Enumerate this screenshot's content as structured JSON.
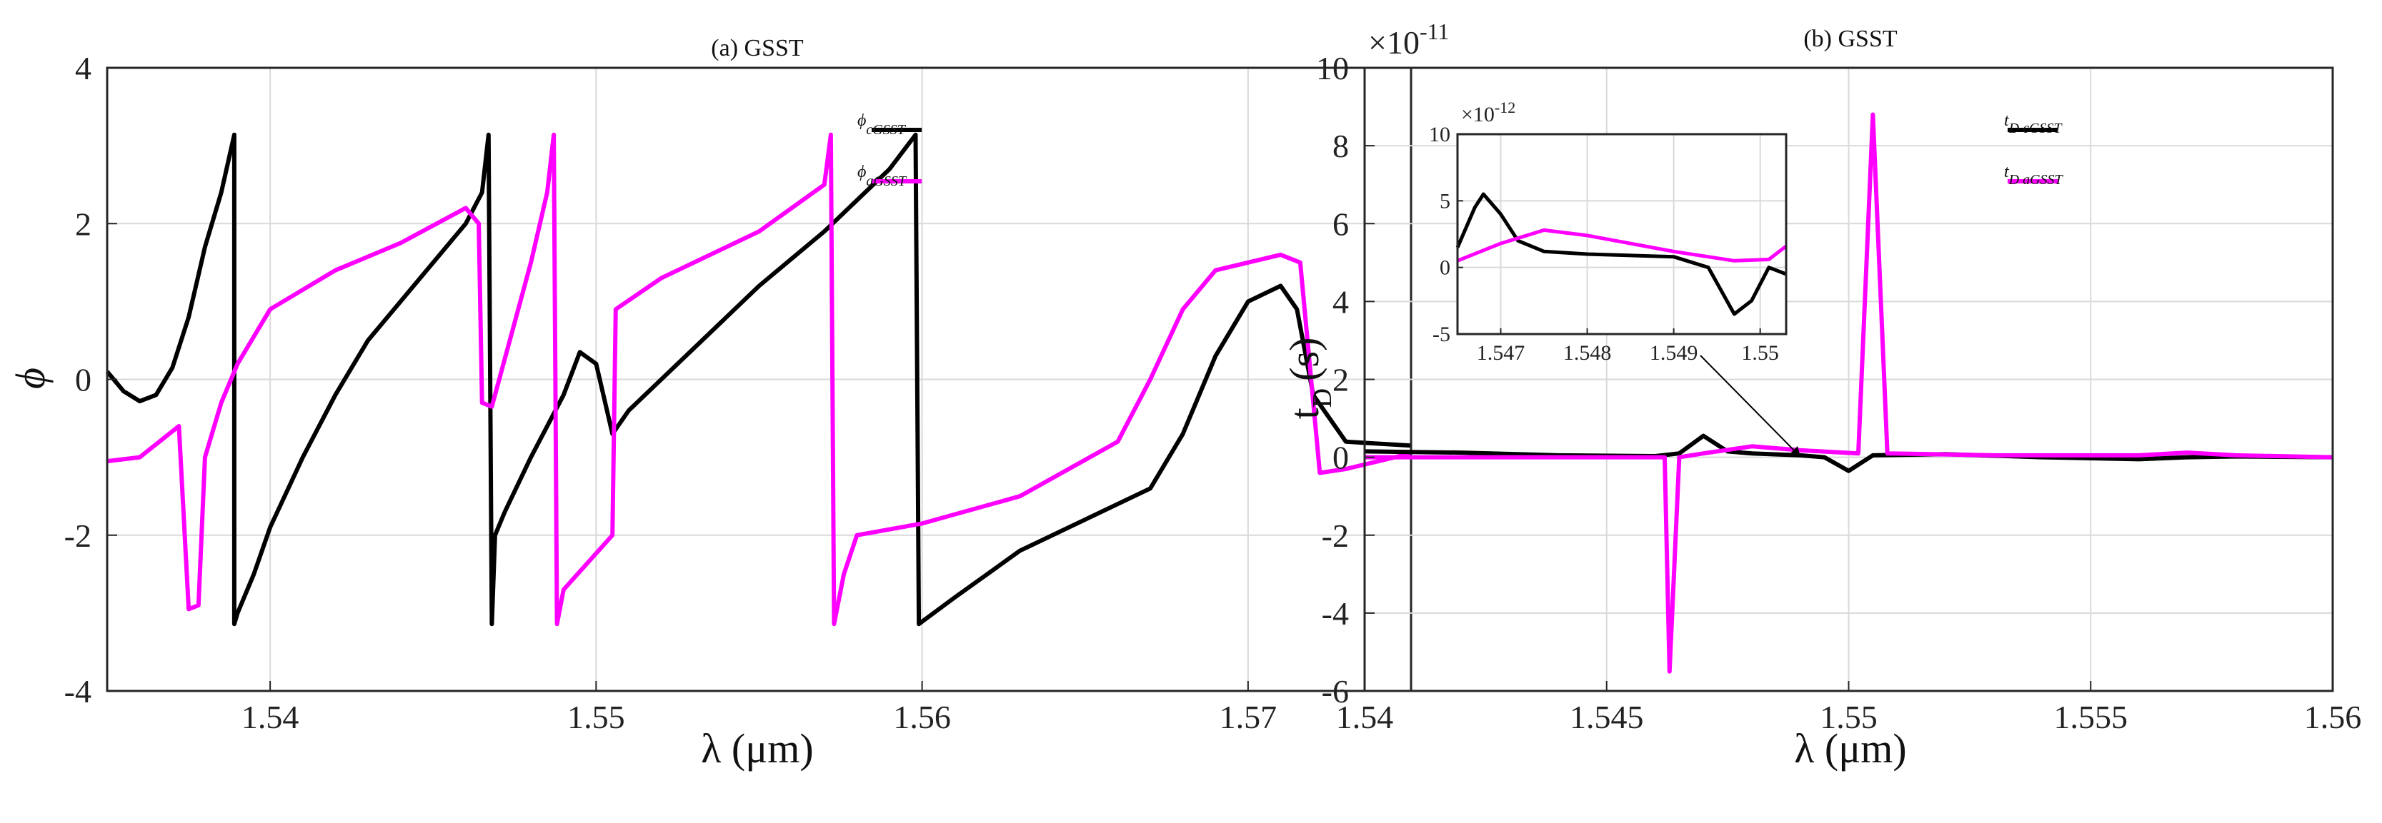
{
  "chart_data": [
    {
      "type": "line",
      "title": "(a) GSST",
      "xlabel": "λ (μm)",
      "ylabel": "ϕ",
      "xlim": [
        1.535,
        1.575
      ],
      "ylim": [
        -4,
        4
      ],
      "xticks": [
        1.54,
        1.55,
        1.56,
        1.57
      ],
      "yticks": [
        -4,
        -2,
        0,
        2,
        4
      ],
      "xtick_labels": [
        "1.54",
        "1.55",
        "1.56",
        "1.57"
      ],
      "ytick_labels": [
        "-4",
        "-2",
        "0",
        "2",
        "4"
      ],
      "legend": [
        {
          "symbol": "ϕ",
          "sub": "cGSST",
          "color": "#000000"
        },
        {
          "symbol": "ϕ",
          "sub": "aGSST",
          "color": "#ff00ff"
        }
      ],
      "series": [
        {
          "name": "ϕcGSST",
          "color": "#000000",
          "points": [
            [
              1.535,
              0.1
            ],
            [
              1.5355,
              -0.15
            ],
            [
              1.536,
              -0.28
            ],
            [
              1.5365,
              -0.2
            ],
            [
              1.537,
              0.15
            ],
            [
              1.5375,
              0.8
            ],
            [
              1.538,
              1.7
            ],
            [
              1.5385,
              2.4
            ],
            [
              1.5389,
              3.14
            ],
            [
              1.5389,
              -3.14
            ],
            [
              1.539,
              -3.0
            ],
            [
              1.5395,
              -2.5
            ],
            [
              1.54,
              -1.9
            ],
            [
              1.541,
              -1.0
            ],
            [
              1.542,
              -0.2
            ],
            [
              1.543,
              0.5
            ],
            [
              1.544,
              1.0
            ],
            [
              1.545,
              1.5
            ],
            [
              1.546,
              2.0
            ],
            [
              1.5465,
              2.4
            ],
            [
              1.5467,
              3.14
            ],
            [
              1.5468,
              -3.14
            ],
            [
              1.5469,
              -2.0
            ],
            [
              1.5472,
              -1.7
            ],
            [
              1.548,
              -1.0
            ],
            [
              1.549,
              -0.2
            ],
            [
              1.5495,
              0.35
            ],
            [
              1.55,
              0.2
            ],
            [
              1.5505,
              -0.7
            ],
            [
              1.551,
              -0.4
            ],
            [
              1.553,
              0.4
            ],
            [
              1.555,
              1.2
            ],
            [
              1.557,
              1.9
            ],
            [
              1.559,
              2.7
            ],
            [
              1.5598,
              3.14
            ],
            [
              1.5599,
              -3.14
            ],
            [
              1.561,
              -2.8
            ],
            [
              1.563,
              -2.2
            ],
            [
              1.565,
              -1.8
            ],
            [
              1.567,
              -1.4
            ],
            [
              1.568,
              -0.7
            ],
            [
              1.569,
              0.3
            ],
            [
              1.57,
              1.0
            ],
            [
              1.571,
              1.2
            ],
            [
              1.5715,
              0.9
            ],
            [
              1.572,
              -0.2
            ],
            [
              1.573,
              -0.8
            ],
            [
              1.575,
              -0.85
            ]
          ]
        },
        {
          "name": "ϕaGSST",
          "color": "#ff00ff",
          "points": [
            [
              1.535,
              -1.05
            ],
            [
              1.536,
              -1.0
            ],
            [
              1.5372,
              -0.6
            ],
            [
              1.5375,
              -2.95
            ],
            [
              1.5378,
              -2.9
            ],
            [
              1.538,
              -1.0
            ],
            [
              1.5385,
              -0.3
            ],
            [
              1.539,
              0.2
            ],
            [
              1.54,
              0.9
            ],
            [
              1.542,
              1.4
            ],
            [
              1.544,
              1.75
            ],
            [
              1.546,
              2.2
            ],
            [
              1.5464,
              2.0
            ],
            [
              1.5465,
              -0.3
            ],
            [
              1.5468,
              -0.35
            ],
            [
              1.548,
              1.5
            ],
            [
              1.5485,
              2.4
            ],
            [
              1.5487,
              3.14
            ],
            [
              1.5488,
              -3.14
            ],
            [
              1.549,
              -2.7
            ],
            [
              1.5505,
              -2.0
            ],
            [
              1.5506,
              0.9
            ],
            [
              1.552,
              1.3
            ],
            [
              1.555,
              1.9
            ],
            [
              1.557,
              2.5
            ],
            [
              1.5572,
              3.14
            ],
            [
              1.5573,
              -3.14
            ],
            [
              1.5576,
              -2.5
            ],
            [
              1.558,
              -2.0
            ],
            [
              1.56,
              -1.85
            ],
            [
              1.563,
              -1.5
            ],
            [
              1.566,
              -0.8
            ],
            [
              1.567,
              0.0
            ],
            [
              1.568,
              0.9
            ],
            [
              1.569,
              1.4
            ],
            [
              1.571,
              1.6
            ],
            [
              1.5716,
              1.5
            ],
            [
              1.5722,
              -1.2
            ],
            [
              1.573,
              -1.15
            ],
            [
              1.575,
              -0.95
            ]
          ]
        }
      ]
    },
    {
      "type": "line",
      "title": "(b) GSST",
      "xlabel": "λ (μm)",
      "ylabel": "tD (s)",
      "ylabel_main": "t",
      "ylabel_sub": "D",
      "ylabel_unit": "(s)",
      "exponent_base": "×10",
      "exponent": "-11",
      "xlim": [
        1.54,
        1.56
      ],
      "ylim": [
        -6,
        10
      ],
      "xticks": [
        1.54,
        1.545,
        1.55,
        1.555,
        1.56
      ],
      "yticks": [
        -6,
        -4,
        -2,
        0,
        2,
        4,
        6,
        8,
        10
      ],
      "xtick_labels": [
        "1.54",
        "1.545",
        "1.55",
        "1.555",
        "1.56"
      ],
      "ytick_labels": [
        "-6",
        "-4",
        "-2",
        "0",
        "2",
        "4",
        "6",
        "8",
        "10"
      ],
      "legend": [
        {
          "symbol": "t",
          "sub": "D cGSST",
          "color": "#000000"
        },
        {
          "symbol": "t",
          "sub": "D aGSST",
          "color": "#ff00ff"
        }
      ],
      "series": [
        {
          "name": "tD cGSST",
          "color": "#000000",
          "points": [
            [
              1.54,
              0.15
            ],
            [
              1.542,
              0.12
            ],
            [
              1.544,
              0.05
            ],
            [
              1.546,
              0.03
            ],
            [
              1.5465,
              0.1
            ],
            [
              1.547,
              0.55
            ],
            [
              1.5475,
              0.15
            ],
            [
              1.548,
              0.1
            ],
            [
              1.549,
              0.05
            ],
            [
              1.5495,
              0.0
            ],
            [
              1.55,
              -0.35
            ],
            [
              1.5505,
              0.05
            ],
            [
              1.552,
              0.08
            ],
            [
              1.554,
              0.0
            ],
            [
              1.556,
              -0.05
            ],
            [
              1.557,
              0.0
            ],
            [
              1.558,
              0.02
            ],
            [
              1.56,
              0.0
            ]
          ]
        },
        {
          "name": "tD aGSST",
          "color": "#ff00ff",
          "points": [
            [
              1.54,
              0.0
            ],
            [
              1.544,
              0.0
            ],
            [
              1.5462,
              0.0
            ],
            [
              1.5463,
              -5.5
            ],
            [
              1.5465,
              0.0
            ],
            [
              1.547,
              0.1
            ],
            [
              1.548,
              0.28
            ],
            [
              1.549,
              0.18
            ],
            [
              1.5502,
              0.1
            ],
            [
              1.5505,
              8.8
            ],
            [
              1.5508,
              0.1
            ],
            [
              1.553,
              0.05
            ],
            [
              1.556,
              0.05
            ],
            [
              1.557,
              0.12
            ],
            [
              1.558,
              0.05
            ],
            [
              1.56,
              0.0
            ]
          ]
        }
      ],
      "inset": {
        "exponent_base": "×10",
        "exponent": "-12",
        "xlim": [
          1.5465,
          1.5503
        ],
        "ylim": [
          -5,
          10
        ],
        "xticks": [
          1.547,
          1.548,
          1.549,
          1.55
        ],
        "xtick_labels": [
          "1.547",
          "1.548",
          "1.549",
          "1.55"
        ],
        "yticks": [
          -5,
          0,
          5,
          10
        ],
        "ytick_labels": [
          "-5",
          "0",
          "5",
          "10"
        ],
        "series": [
          {
            "name": "cGSST",
            "color": "#000000",
            "points": [
              [
                1.5465,
                1.5
              ],
              [
                1.5467,
                4.5
              ],
              [
                1.5468,
                5.5
              ],
              [
                1.547,
                4.0
              ],
              [
                1.5472,
                2.0
              ],
              [
                1.5475,
                1.2
              ],
              [
                1.548,
                1.0
              ],
              [
                1.549,
                0.8
              ],
              [
                1.5494,
                0.0
              ],
              [
                1.5497,
                -3.5
              ],
              [
                1.5499,
                -2.5
              ],
              [
                1.5501,
                0.0
              ],
              [
                1.5503,
                -0.5
              ]
            ]
          },
          {
            "name": "aGSST",
            "color": "#ff00ff",
            "points": [
              [
                1.5465,
                0.5
              ],
              [
                1.547,
                1.8
              ],
              [
                1.5475,
                2.8
              ],
              [
                1.548,
                2.4
              ],
              [
                1.549,
                1.2
              ],
              [
                1.5497,
                0.5
              ],
              [
                1.5501,
                0.6
              ],
              [
                1.5503,
                1.6
              ]
            ]
          }
        ]
      }
    }
  ]
}
